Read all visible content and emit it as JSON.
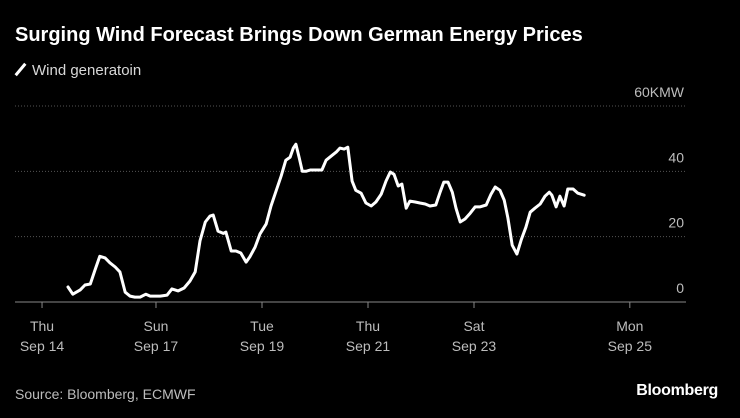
{
  "chart_data": {
    "type": "line",
    "title": "Surging Wind Forecast Brings Down German Energy Prices",
    "source": "Source: Bloomberg, ECMWF",
    "brand": "Bloomberg",
    "series": [
      {
        "name": "Wind generatoin",
        "color": "#ffffff",
        "x": [
          0.49,
          0.58,
          0.72,
          0.81,
          0.91,
          1.0,
          1.09,
          1.19,
          1.28,
          1.38,
          1.47,
          1.57,
          1.66,
          1.75,
          1.85,
          1.96,
          2.04,
          2.23,
          2.36,
          2.45,
          2.57,
          2.68,
          2.79,
          2.89,
          2.98,
          3.08,
          3.17,
          3.23,
          3.32,
          3.42,
          3.47,
          3.57,
          3.66,
          3.75,
          3.85,
          3.92,
          4.02,
          4.11,
          4.23,
          4.32,
          4.42,
          4.51,
          4.6,
          4.68,
          4.74,
          4.79,
          4.85,
          4.91,
          4.98,
          5.06,
          5.17,
          5.28,
          5.36,
          5.45,
          5.55,
          5.62,
          5.7,
          5.77,
          5.85,
          5.92,
          6.02,
          6.11,
          6.21,
          6.3,
          6.4,
          6.49,
          6.57,
          6.64,
          6.72,
          6.79,
          6.87,
          6.94,
          7.04,
          7.13,
          7.23,
          7.32,
          7.43,
          7.51,
          7.58,
          7.66,
          7.74,
          7.81,
          7.89,
          7.98,
          8.08,
          8.17,
          8.26,
          8.38,
          8.47,
          8.55,
          8.64,
          8.72,
          8.79,
          8.87,
          8.96,
          9.04,
          9.13,
          9.21,
          9.3,
          9.4,
          9.49,
          9.57,
          9.62,
          9.7,
          9.77,
          9.85,
          9.92,
          10.02,
          10.11,
          10.23
        ],
        "values": [
          4.6,
          2.4,
          3.7,
          5.2,
          5.5,
          9.8,
          14,
          13.5,
          12,
          10.7,
          9.2,
          3,
          1.8,
          1.5,
          1.5,
          2.4,
          1.8,
          1.8,
          2.1,
          4,
          3.4,
          4.3,
          6.4,
          9.2,
          18.7,
          24.5,
          26.3,
          26.6,
          21.7,
          21,
          21.4,
          15.6,
          15.6,
          15,
          12.2,
          13.8,
          16.8,
          20.8,
          23.9,
          29.4,
          34.2,
          38.5,
          43.4,
          44.3,
          47.1,
          48.3,
          44.3,
          40,
          40,
          40.4,
          40.4,
          40.4,
          43.4,
          44.6,
          45.9,
          47.1,
          46.8,
          47.4,
          37,
          34.2,
          33.3,
          30.3,
          29.4,
          30.6,
          33,
          37,
          39.8,
          39.1,
          35.5,
          36.1,
          28.7,
          30.9,
          30.6,
          30.3,
          30,
          29.4,
          29.7,
          33.6,
          36.7,
          36.7,
          33.6,
          28.7,
          24.5,
          25.4,
          27.2,
          29.1,
          29.1,
          29.7,
          33,
          35.2,
          34.2,
          31.2,
          25.7,
          17.4,
          14.7,
          19,
          22.9,
          27.5,
          28.7,
          30,
          32.4,
          33.6,
          32.7,
          29.1,
          32.4,
          29.4,
          34.6,
          34.6,
          33.3,
          32.7
        ]
      }
    ],
    "xlim": [
      -0.51,
      12.15
    ],
    "xticks": [
      {
        "value": 0,
        "label": "Thu\nSep 14"
      },
      {
        "value": 2.15,
        "label": "Sun\nSep 17"
      },
      {
        "value": 4.15,
        "label": "Tue\nSep 19"
      },
      {
        "value": 6.15,
        "label": "Thu\nSep 21"
      },
      {
        "value": 8.15,
        "label": "Sat\nSep 23"
      },
      {
        "value": 11.09,
        "label": "Mon\nSep 25"
      }
    ],
    "ylim": [
      0,
      60
    ],
    "yticks": [
      0,
      20,
      40,
      {
        "value": 60,
        "label": "60KMW"
      }
    ],
    "grid": true
  }
}
